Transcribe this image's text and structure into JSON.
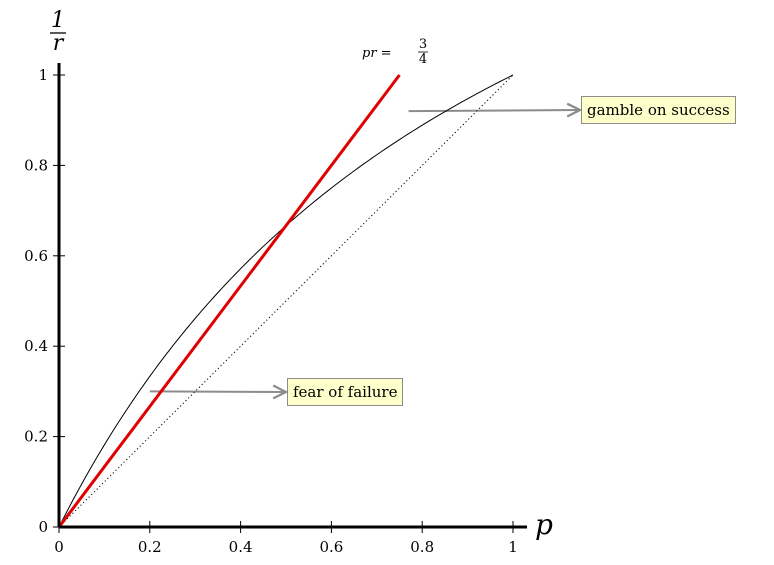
{
  "chart_data": {
    "type": "line",
    "xlabel": "p",
    "ylabel": {
      "numerator": "1",
      "denominator": "r"
    },
    "xlim": [
      0,
      1
    ],
    "ylim": [
      0,
      1
    ],
    "x_ticks": [
      "0",
      "0.2",
      "0.4",
      "0.6",
      "0.8",
      "1"
    ],
    "y_ticks": [
      "0",
      "0.2",
      "0.4",
      "0.6",
      "0.8",
      "1"
    ],
    "grid": false,
    "series": [
      {
        "name": "",
        "style": "solid-thin",
        "color": "#000000",
        "x": [
          0,
          0.1,
          0.2,
          0.3,
          0.4,
          0.5,
          0.6,
          0.7,
          0.8,
          0.9,
          1.0
        ],
        "y": [
          0,
          0.181,
          0.333,
          0.462,
          0.571,
          0.667,
          0.75,
          0.824,
          0.889,
          0.947,
          1.0
        ]
      },
      {
        "name": "",
        "style": "dotted",
        "color": "#000000",
        "x": [
          0,
          1
        ],
        "y": [
          0,
          1
        ]
      },
      {
        "name": "",
        "style": "solid-thick",
        "color": "#e00000",
        "x": [
          0,
          0.75
        ],
        "y": [
          0,
          1
        ]
      }
    ],
    "curve_label": {
      "lhs": "pr = ",
      "num": "3",
      "den": "4"
    },
    "annotations": [
      {
        "text": "gamble on success",
        "arrow_from": [
          0.77,
          0.92
        ]
      },
      {
        "text": "fear of failure",
        "arrow_from": [
          0.2,
          0.3
        ]
      }
    ]
  }
}
